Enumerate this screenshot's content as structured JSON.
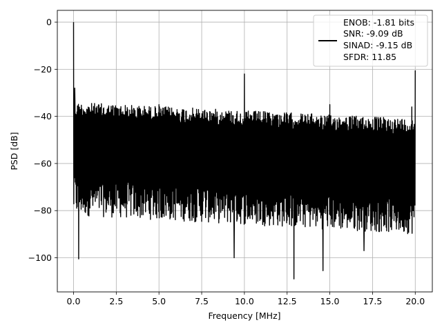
{
  "chart_data": {
    "type": "line",
    "title": "",
    "xlabel": "Frequency [MHz]",
    "ylabel": "PSD [dB]",
    "xlim": [
      -0.95,
      21.0
    ],
    "ylim": [
      -114.5,
      5.0
    ],
    "x_ticks": [
      0.0,
      2.5,
      5.0,
      7.5,
      10.0,
      12.5,
      15.0,
      17.5,
      20.0
    ],
    "x_tick_labels": [
      "0.0",
      "2.5",
      "5.0",
      "7.5",
      "10.0",
      "12.5",
      "15.0",
      "17.5",
      "20.0"
    ],
    "y_ticks": [
      0,
      -20,
      -40,
      -60,
      -80,
      -100
    ],
    "y_tick_labels": [
      "0",
      "−20",
      "−40",
      "−60",
      "−80",
      "−100"
    ],
    "grid": true,
    "legend": {
      "placement": "top-right",
      "entries": [
        "ENOB: -1.81 bits",
        "SNR: -9.09 dB",
        "SINAD: -9.15 dB",
        "SFDR: 11.85"
      ]
    },
    "series": [
      {
        "color": "#000000",
        "x_range": [
          0.0,
          20.0
        ],
        "spikes": [
          {
            "x": 0.0,
            "y": 0
          },
          {
            "x": 0.07,
            "y": -28
          },
          {
            "x": 5.0,
            "y": -35
          },
          {
            "x": 10.0,
            "y": -22
          },
          {
            "x": 15.0,
            "y": -35
          },
          {
            "x": 19.8,
            "y": -36
          },
          {
            "x": 20.0,
            "y": -20.5
          }
        ],
        "deep_dips": [
          {
            "x": 0.3,
            "y": -100.5
          },
          {
            "x": 9.4,
            "y": -100
          },
          {
            "x": 12.9,
            "y": -109
          },
          {
            "x": 14.6,
            "y": -105.5
          },
          {
            "x": 17.0,
            "y": -97
          }
        ],
        "noise_band": {
          "upper_start": -34,
          "upper_end": -41,
          "lower_start": -78,
          "lower_end": -86
        }
      }
    ]
  }
}
